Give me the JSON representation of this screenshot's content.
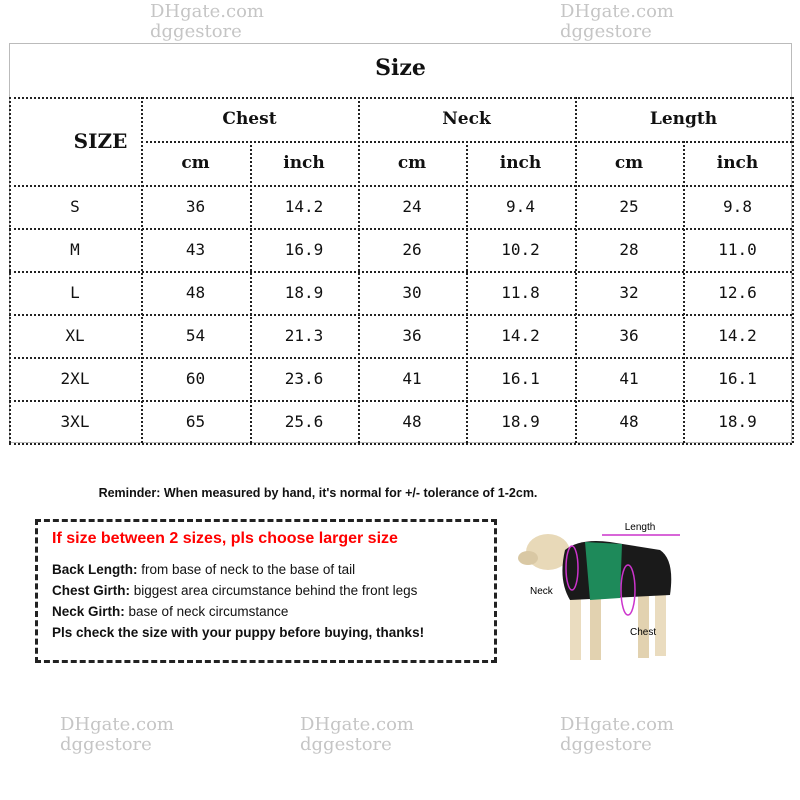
{
  "title": "Size",
  "table": {
    "size_header": "SIZE",
    "groups": [
      "Chest",
      "Neck",
      "Length"
    ],
    "units": [
      "cm",
      "inch",
      "cm",
      "inch",
      "cm",
      "inch"
    ],
    "rows": [
      [
        "S",
        "36",
        "14.2",
        "24",
        "9.4",
        "25",
        "9.8"
      ],
      [
        "M",
        "43",
        "16.9",
        "26",
        "10.2",
        "28",
        "11.0"
      ],
      [
        "L",
        "48",
        "18.9",
        "30",
        "11.8",
        "32",
        "12.6"
      ],
      [
        "XL",
        "54",
        "21.3",
        "36",
        "14.2",
        "36",
        "14.2"
      ],
      [
        "2XL",
        "60",
        "23.6",
        "41",
        "16.1",
        "41",
        "16.1"
      ],
      [
        "3XL",
        "65",
        "25.6",
        "48",
        "18.9",
        "48",
        "18.9"
      ]
    ]
  },
  "reminder": "Reminder: When measured by hand, it's normal for +/- tolerance of 1-2cm.",
  "notes": {
    "warning": "If size between  2 sizes, pls choose larger size",
    "warning_color": "#ff0000",
    "items": [
      {
        "label": "Back Length:",
        "text": " from base of neck to the base of tail"
      },
      {
        "label": "Chest Girth:",
        "text": " biggest area circumstance behind the front legs"
      },
      {
        "label": "Neck Girth:",
        "text": " base of neck circumstance"
      }
    ],
    "closing": "Pls check the size with your puppy before buying, thanks!"
  },
  "diagram": {
    "length": "Length",
    "neck": "Neck",
    "chest": "Chest",
    "marker_color": "#cc33cc"
  },
  "watermark": {
    "line1": "DHgate.com",
    "line2": "dggestore"
  }
}
